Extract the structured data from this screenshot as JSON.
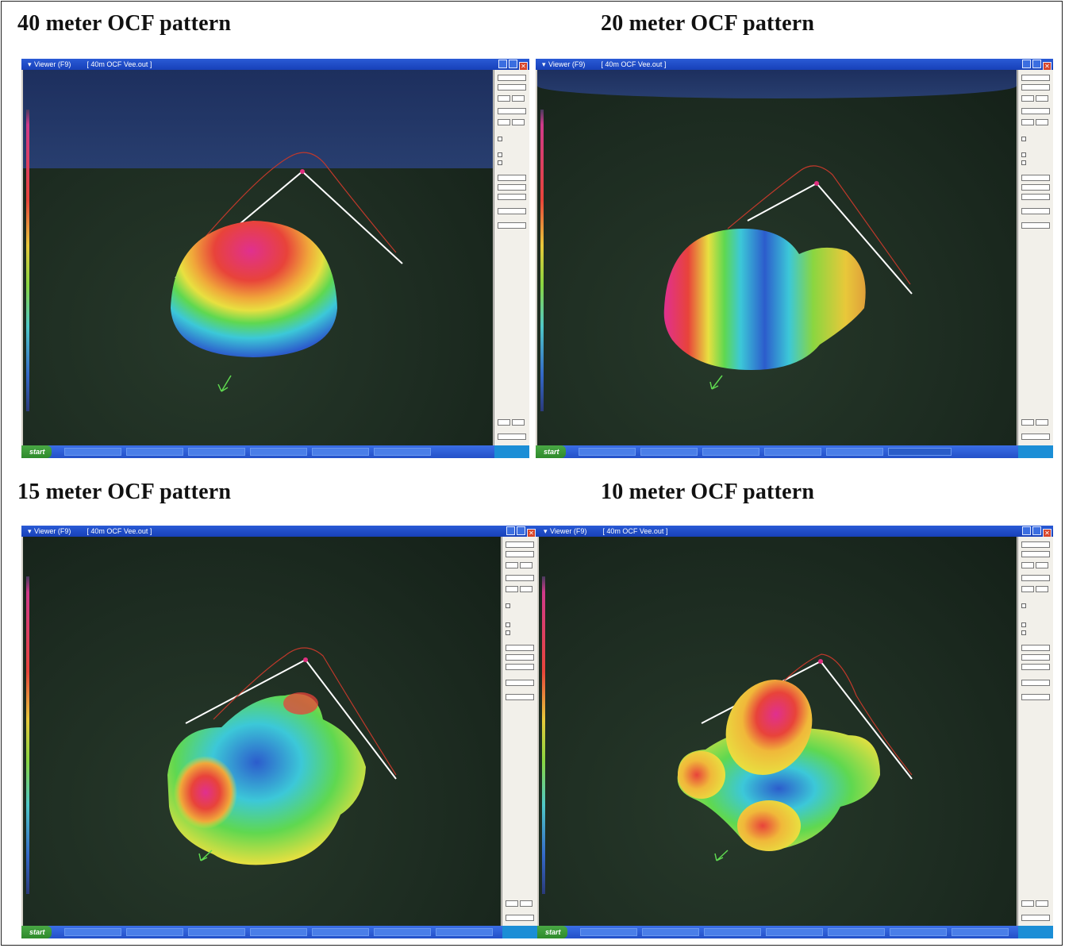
{
  "headings": {
    "top_left": "40 meter OCF pattern",
    "top_right": "20 meter OCF pattern",
    "bottom_left": "15 meter OCF pattern",
    "bottom_right": "10 meter OCF pattern"
  },
  "window": {
    "title": "Viewer (F9)",
    "document": "[ 40m OCF Vee.out ]",
    "start_label": "start"
  },
  "colors": {
    "titlebar": "#1f4fc9",
    "ground": "#1d2c21",
    "sky": "#243a6a",
    "wire": "#ffffff",
    "trace": "#c0392b"
  }
}
